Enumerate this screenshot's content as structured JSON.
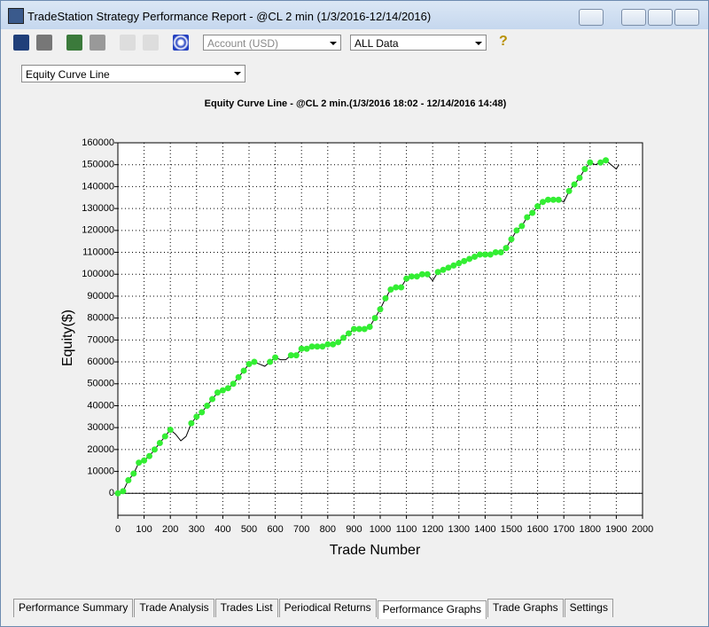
{
  "window_title": "TradeStation Strategy Performance Report - @CL 2 min (1/3/2016-12/14/2016)",
  "toolbar": {
    "account": "Account (USD)",
    "range": "ALL Data",
    "help": "?"
  },
  "graph_select": "Equity Curve Line",
  "tabs": [
    "Performance Summary",
    "Trade Analysis",
    "Trades List",
    "Periodical Returns",
    "Performance Graphs",
    "Trade Graphs",
    "Settings"
  ],
  "chart_data": {
    "type": "line",
    "title": "Equity Curve Line - @CL 2 min.(1/3/2016 18:02 - 12/14/2016 14:48)",
    "x_label": "Trade Number",
    "y_label": "Equity($)",
    "color": "#000000",
    "marker_color": "#33ee33",
    "x": [
      0,
      20,
      40,
      60,
      80,
      100,
      120,
      140,
      160,
      180,
      200,
      220,
      240,
      260,
      280,
      300,
      320,
      340,
      360,
      380,
      400,
      420,
      440,
      460,
      480,
      500,
      520,
      540,
      560,
      580,
      600,
      620,
      640,
      660,
      680,
      700,
      720,
      740,
      760,
      780,
      800,
      820,
      840,
      860,
      880,
      900,
      920,
      940,
      960,
      980,
      1000,
      1020,
      1040,
      1060,
      1080,
      1100,
      1120,
      1140,
      1160,
      1180,
      1200,
      1220,
      1240,
      1260,
      1280,
      1300,
      1320,
      1340,
      1360,
      1380,
      1400,
      1420,
      1440,
      1460,
      1480,
      1500,
      1520,
      1540,
      1560,
      1580,
      1600,
      1620,
      1640,
      1660,
      1680,
      1700,
      1720,
      1740,
      1760,
      1780,
      1800,
      1820,
      1840,
      1860,
      1880,
      1900,
      1910
    ],
    "values": [
      0,
      1000,
      6000,
      9000,
      14000,
      15000,
      17000,
      20000,
      23000,
      26000,
      29000,
      27000,
      24000,
      26000,
      32000,
      35000,
      37000,
      40000,
      43000,
      46000,
      47000,
      48000,
      50000,
      53000,
      56000,
      59000,
      60000,
      59000,
      58000,
      60000,
      62000,
      61000,
      61000,
      63000,
      63000,
      66000,
      66000,
      67000,
      67000,
      67000,
      68000,
      68000,
      69000,
      71000,
      73000,
      75000,
      75000,
      75000,
      76000,
      80000,
      84000,
      89000,
      93000,
      94000,
      94000,
      98000,
      99000,
      99000,
      100000,
      100000,
      97000,
      101000,
      102000,
      103000,
      104000,
      105000,
      106000,
      107000,
      108000,
      109000,
      109000,
      109000,
      110000,
      110000,
      112000,
      116000,
      120000,
      122000,
      126000,
      128000,
      131000,
      133000,
      134000,
      134000,
      134000,
      133000,
      138000,
      141000,
      144000,
      148000,
      151000,
      150000,
      151000,
      152000,
      150000,
      148000,
      150000
    ],
    "xlim": [
      0,
      2000
    ],
    "ylim": [
      -10000,
      160000
    ],
    "xticks": [
      0,
      100,
      200,
      300,
      400,
      500,
      600,
      700,
      800,
      900,
      1000,
      1100,
      1200,
      1300,
      1400,
      1500,
      1600,
      1700,
      1800,
      1900,
      2000
    ],
    "yticks": [
      0,
      10000,
      20000,
      30000,
      40000,
      50000,
      60000,
      70000,
      80000,
      90000,
      100000,
      110000,
      120000,
      130000,
      140000,
      150000,
      160000
    ],
    "grid": true
  }
}
